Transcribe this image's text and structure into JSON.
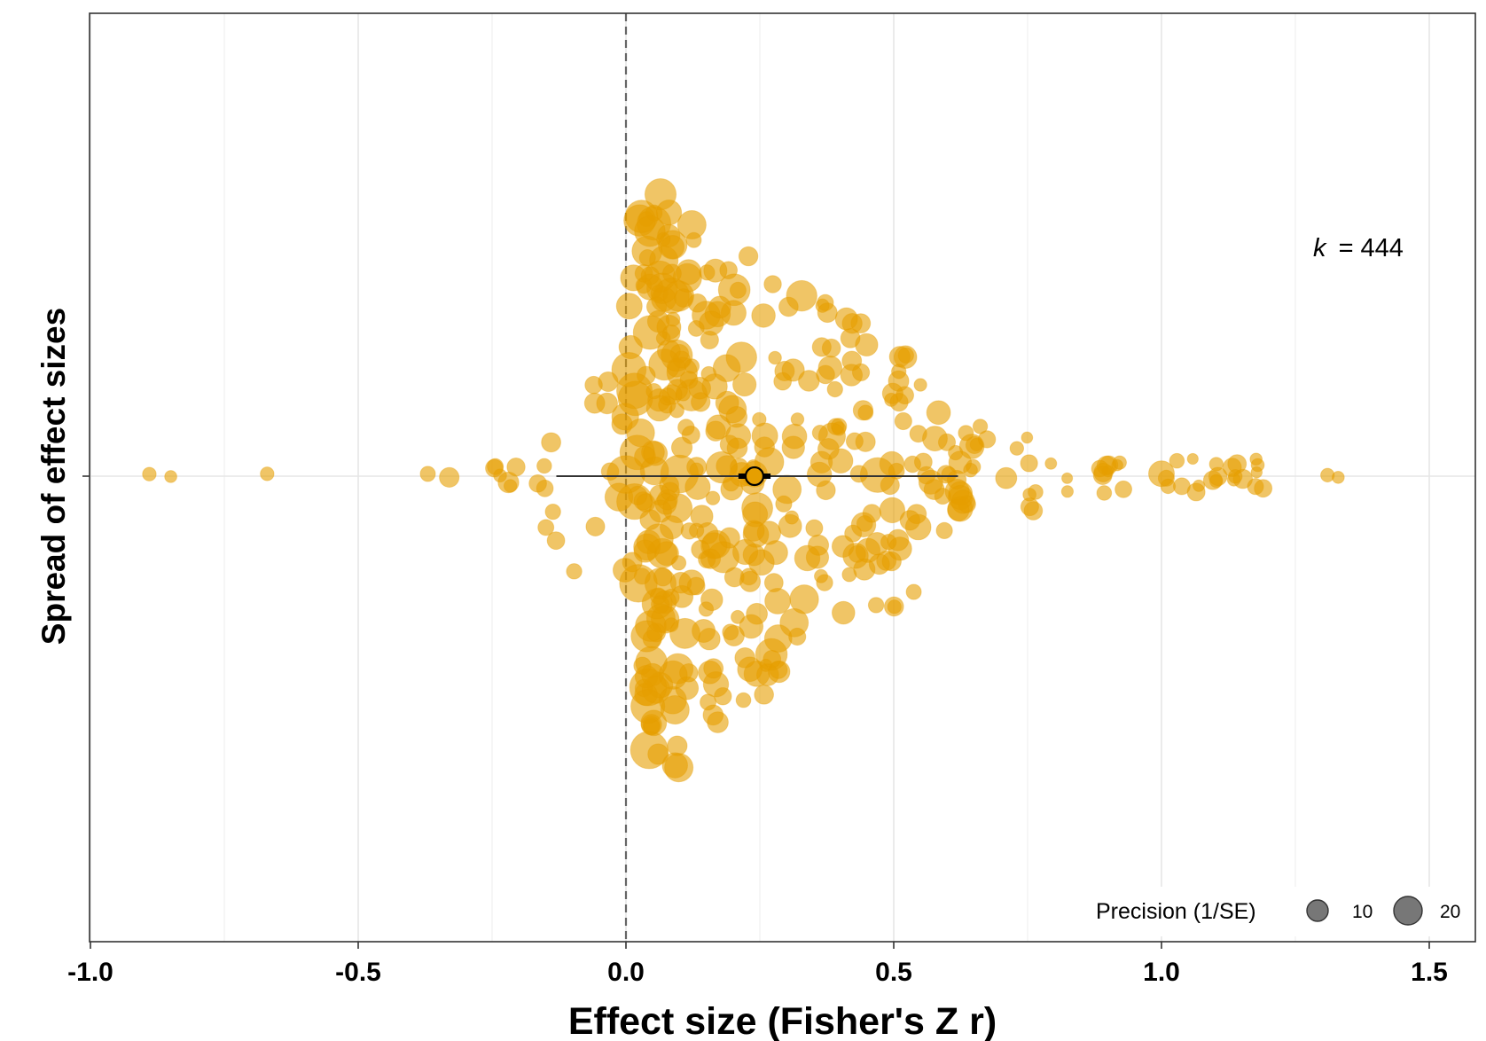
{
  "chart_data": {
    "type": "scatter",
    "subtype": "orchard-plot",
    "title": "",
    "xlabel": "Effect size (Fisher's Z r)",
    "ylabel": "Spread of effect sizes",
    "xlim": [
      -1.0,
      1.5
    ],
    "x_ticks": [
      "-1.0",
      "-0.5",
      "0.0",
      "0.5",
      "1.0",
      "1.5"
    ],
    "x_tick_values": [
      -1.0,
      -0.5,
      0.0,
      0.5,
      1.0,
      1.5
    ],
    "grid": true,
    "reference_line_x": 0,
    "point_color": "#E69F00",
    "point_opacity": 0.6,
    "k_label": "k",
    "k_value": "= 444",
    "mean_estimate": 0.24,
    "confidence_interval": [
      0.21,
      0.27
    ],
    "prediction_interval": [
      -0.13,
      0.62
    ],
    "legend": {
      "title": "Precision (1/SE)",
      "entries": [
        "10",
        "20"
      ],
      "entry_values": [
        10,
        20
      ],
      "color": "#777777",
      "placement": "bottom-right"
    },
    "points_sample": [
      {
        "x": -0.89,
        "precision": 4
      },
      {
        "x": -0.85,
        "precision": 3
      },
      {
        "x": -0.67,
        "precision": 4
      },
      {
        "x": -0.37,
        "precision": 5
      },
      {
        "x": -0.33,
        "precision": 8
      },
      {
        "x": 0.0,
        "precision": 20
      },
      {
        "x": 0.1,
        "precision": 20
      },
      {
        "x": 0.24,
        "precision": 12
      },
      {
        "x": 0.47,
        "precision": 18
      },
      {
        "x": 0.71,
        "precision": 9
      },
      {
        "x": 1.0,
        "precision": 12
      },
      {
        "x": 1.31,
        "precision": 4
      },
      {
        "x": 1.33,
        "precision": 3
      }
    ]
  }
}
